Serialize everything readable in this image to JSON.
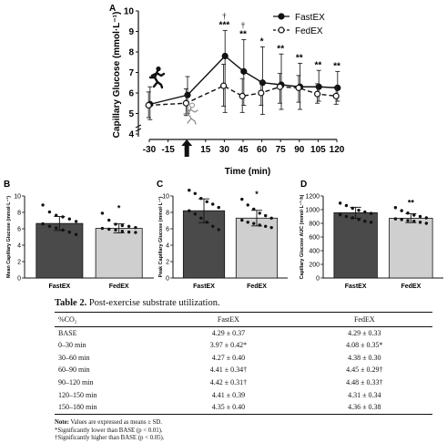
{
  "panel_labels": {
    "A": "A",
    "B": "B",
    "C": "C",
    "D": "D"
  },
  "chart_data": [
    {
      "panel": "A",
      "type": "line",
      "ylabel": "Capillary Glucose (mmol·L⁻¹)",
      "xlabel": "Time (min)",
      "x": [
        -30,
        0,
        30,
        45,
        60,
        75,
        90,
        105,
        120
      ],
      "x_ticks": [
        "-30",
        "-15",
        "0",
        "15",
        "30",
        "45",
        "60",
        "75",
        "90",
        "105",
        "120"
      ],
      "x_tick_values": [
        -30,
        -15,
        0,
        15,
        30,
        45,
        60,
        75,
        90,
        105,
        120
      ],
      "y_ticks": [
        "4",
        "5",
        "6",
        "7",
        "8",
        "9",
        "10"
      ],
      "ylim": [
        4,
        10
      ],
      "xlim": [
        -30,
        120
      ],
      "legend_position": "top-right",
      "series": [
        {
          "name": "FastEX",
          "marker": "filled-circle",
          "line": "solid",
          "values": [
            5.45,
            5.9,
            7.8,
            7.05,
            6.5,
            6.4,
            6.3,
            6.3,
            6.25
          ],
          "err_upper": [
            6.3,
            6.8,
            9.05,
            8.6,
            8.25,
            7.9,
            7.45,
            7.1,
            7.05
          ],
          "err_lower": [
            4.7,
            5.0,
            5.05,
            5.4,
            4.95,
            5.2,
            5.2,
            5.6,
            5.6
          ]
        },
        {
          "name": "FedEX",
          "marker": "open-circle",
          "line": "dashed",
          "values": [
            5.4,
            5.5,
            6.35,
            5.85,
            6.0,
            6.3,
            6.25,
            5.95,
            5.85
          ],
          "err_upper": [
            6.05,
            6.2,
            7.4,
            6.7,
            6.55,
            6.95,
            6.85,
            6.45,
            6.3
          ],
          "err_lower": [
            4.8,
            4.9,
            5.35,
            5.05,
            5.4,
            5.5,
            5.55,
            5.5,
            5.45
          ]
        }
      ],
      "annotations": [
        {
          "x": 30,
          "text": "***",
          "dagger": "†"
        },
        {
          "x": 45,
          "text": "**",
          "dagger": "†"
        },
        {
          "x": 60,
          "text": "*",
          "dagger": ""
        },
        {
          "x": 75,
          "text": "**",
          "dagger": ""
        },
        {
          "x": 90,
          "text": "**",
          "dagger": ""
        },
        {
          "x": 105,
          "text": "**",
          "dagger": ""
        },
        {
          "x": 120,
          "text": "**",
          "dagger": ""
        }
      ],
      "icons": [
        "running-person-icon",
        "running-person-outline-icon",
        "up-arrow-icon"
      ]
    },
    {
      "panel": "B",
      "type": "bar",
      "ylabel": "Mean Capillary Glucose (mmol·L⁻¹)",
      "categories": [
        "FastEX",
        "FedEX"
      ],
      "values": [
        6.65,
        6.05
      ],
      "err": [
        0.85,
        0.55
      ],
      "y_ticks": [
        "0",
        "2",
        "4",
        "6",
        "8",
        "10"
      ],
      "ylim": [
        0,
        10
      ],
      "annotation": "*",
      "points": [
        [
          8.9,
          8.05,
          7.65,
          7.45,
          7.2,
          6.9,
          6.6,
          6.3,
          6.1,
          5.85,
          5.6,
          5.3
        ],
        [
          7.9,
          7.05,
          6.55,
          6.4,
          6.3,
          6.15,
          6.05,
          5.95,
          5.85,
          5.7,
          5.6,
          5.55
        ]
      ]
    },
    {
      "panel": "C",
      "type": "bar",
      "ylabel": "Peak Capillary Glucose (mmol·L⁻¹)",
      "categories": [
        "FastEX",
        "FedEX"
      ],
      "values": [
        8.2,
        7.3
      ],
      "err": [
        1.45,
        0.95
      ],
      "y_ticks": [
        "0",
        "2",
        "4",
        "6",
        "8",
        "10"
      ],
      "ylim": [
        0,
        10
      ],
      "annotation": "*",
      "points": [
        [
          10.7,
          10.3,
          9.7,
          9.3,
          9.0,
          8.6,
          8.2,
          7.8,
          7.3,
          6.8,
          6.3,
          5.9
        ],
        [
          9.6,
          8.9,
          8.4,
          7.9,
          7.6,
          7.3,
          7.05,
          6.8,
          6.65,
          6.45,
          6.3,
          6.15
        ]
      ]
    },
    {
      "panel": "D",
      "type": "bar",
      "ylabel": "Capillary Glucose AUC (mmol·L⁻¹·h)",
      "categories": [
        "FastEX",
        "FedEX"
      ],
      "values": [
        955,
        875
      ],
      "err": [
        80,
        65
      ],
      "y_ticks": [
        "0",
        "200",
        "400",
        "600",
        "800",
        "1000",
        "1200"
      ],
      "ylim": [
        0,
        1200
      ],
      "annotation": "**",
      "points": [
        [
          1095,
          1060,
          1020,
          990,
          965,
          945,
          925,
          900,
          880,
          855,
          830,
          815
        ],
        [
          1030,
          985,
          950,
          920,
          900,
          880,
          865,
          855,
          840,
          830,
          815,
          800
        ]
      ]
    }
  ],
  "table": {
    "caption_label": "Table 2.",
    "caption_text": "Post-exercise substrate utilization.",
    "headers": [
      "%CO₂",
      "FastEX",
      "FedEX"
    ],
    "rows": [
      [
        "BASE",
        "4.29 ± 0.37",
        "4.29 ± 0.33"
      ],
      [
        "0–30 min",
        "3.97 ± 0.42*",
        "4.08 ± 0.35*"
      ],
      [
        "30–60 min",
        "4.27 ± 0.40",
        "4.38 ± 0.30"
      ],
      [
        "60–90 min",
        "4.41 ± 0.34†",
        "4.45 ± 0.29†"
      ],
      [
        "90–120 min",
        "4.42 ± 0.31†",
        "4.48 ± 0.33†"
      ],
      [
        "120–150 min",
        "4.41 ± 0.39",
        "4.31 ± 0.34"
      ],
      [
        "150–180 min",
        "4.35 ± 0.40",
        "4.36 ± 0.38"
      ]
    ],
    "note_label": "Note:",
    "note_text": "Values are expressed as means ± SD.",
    "footnote1": "*Significantly lower than BASE (p < 0.01).",
    "footnote2": "†Significantly higher than BASE (p < 0.05)."
  },
  "colors": {
    "fast_bar": "#4a4a4a",
    "fed_bar": "#cfcfcf",
    "ink": "#111111"
  }
}
